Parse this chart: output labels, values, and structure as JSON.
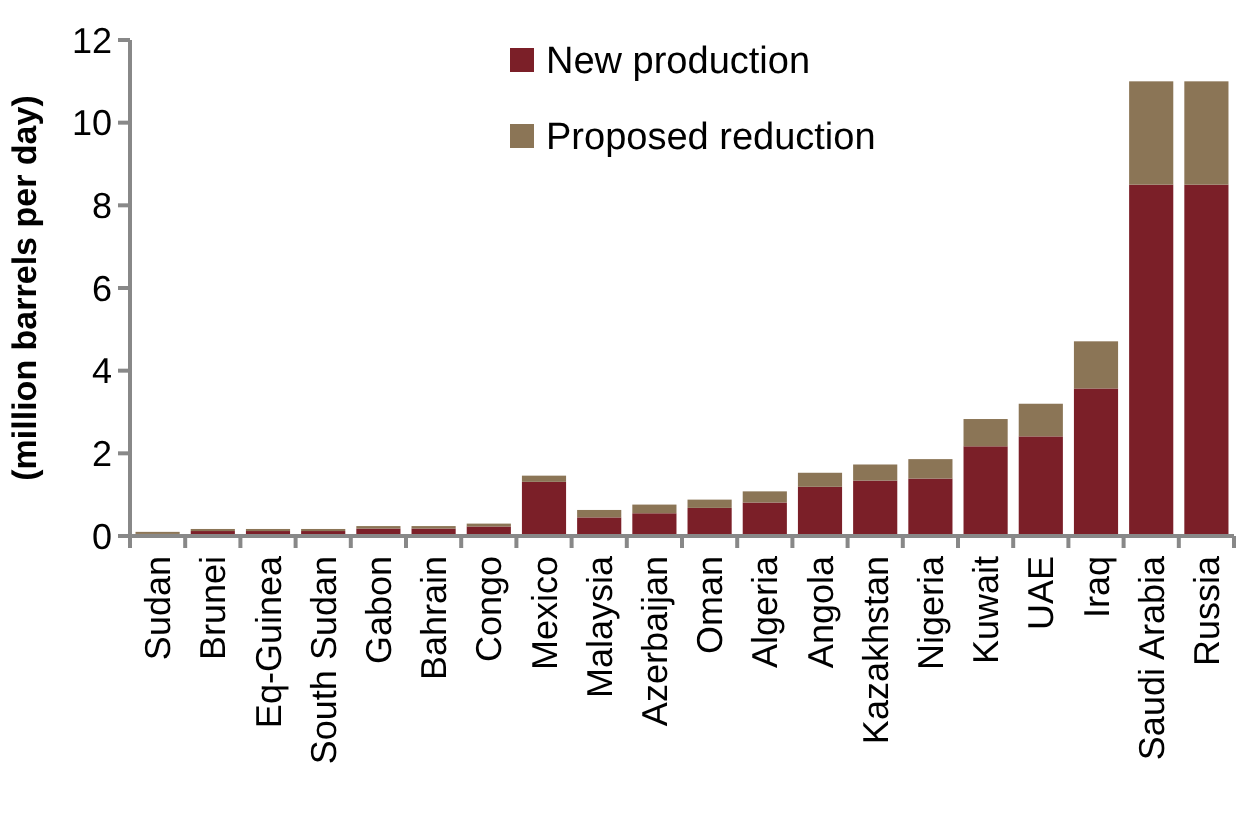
{
  "chart_data": {
    "type": "bar",
    "stacked": true,
    "ylabel": "(million barrels per day)",
    "categories": [
      "Sudan",
      "Brunei",
      "Eq-Guinea",
      "South Sudan",
      "Gabon",
      "Bahrain",
      "Congo",
      "Mexico",
      "Malaysia",
      "Azerbaijan",
      "Oman",
      "Algeria",
      "Angola",
      "Kazakhstan",
      "Nigeria",
      "Kuwait",
      "UAE",
      "Iraq",
      "Saudi Arabia",
      "Russia"
    ],
    "series": [
      {
        "name": "New production",
        "color": "#7b1f28",
        "values": [
          0.05,
          0.12,
          0.12,
          0.12,
          0.18,
          0.18,
          0.23,
          1.31,
          0.45,
          0.55,
          0.68,
          0.81,
          1.19,
          1.34,
          1.39,
          2.17,
          2.41,
          3.57,
          8.5,
          8.5
        ]
      },
      {
        "name": "Proposed reduction",
        "color": "#8b7556",
        "values": [
          0.05,
          0.05,
          0.05,
          0.05,
          0.06,
          0.06,
          0.07,
          0.15,
          0.18,
          0.21,
          0.2,
          0.27,
          0.34,
          0.39,
          0.47,
          0.66,
          0.79,
          1.14,
          2.5,
          2.5
        ]
      }
    ],
    "ylim": [
      0,
      12
    ],
    "yticks": [
      0,
      2,
      4,
      6,
      8,
      10,
      12
    ],
    "legend": "top"
  }
}
